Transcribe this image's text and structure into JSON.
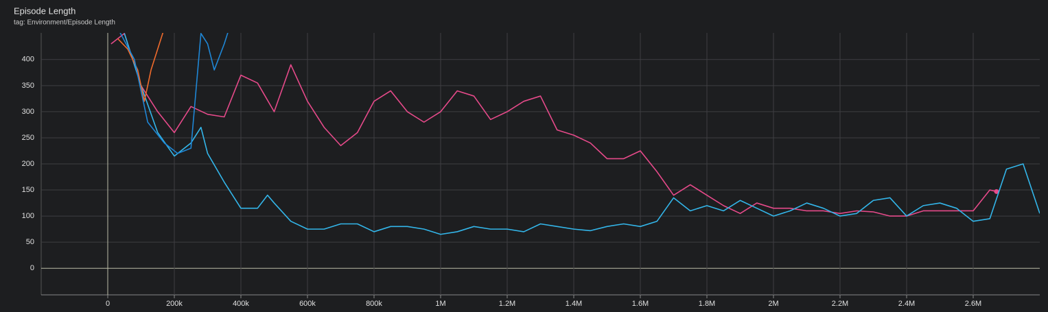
{
  "chart_data": {
    "type": "line",
    "title": "Episode Length",
    "subtitle": "tag: Environment/Episode Length",
    "xlim": [
      -200000,
      2800000
    ],
    "ylim": [
      -51,
      451
    ],
    "xticks": [
      0,
      {
        "value": 200000,
        "label": "200k"
      },
      {
        "value": 400000,
        "label": "400k"
      },
      {
        "value": 600000,
        "label": "600k"
      },
      {
        "value": 800000,
        "label": "800k"
      },
      {
        "value": 1000000,
        "label": "1M"
      },
      {
        "value": 1200000,
        "label": "1.2M"
      },
      {
        "value": 1400000,
        "label": "1.4M"
      },
      {
        "value": 1600000,
        "label": "1.6M"
      },
      {
        "value": 1800000,
        "label": "1.8M"
      },
      {
        "value": 2000000,
        "label": "2M"
      },
      {
        "value": 2200000,
        "label": "2.2M"
      },
      {
        "value": 2400000,
        "label": "2.4M"
      },
      {
        "value": 2600000,
        "label": "2.6M"
      }
    ],
    "yticks": [
      0,
      50,
      100,
      150,
      200,
      250,
      300,
      350,
      400
    ],
    "grid": true,
    "series": [
      {
        "color": "#e64a8a",
        "end_marker": true,
        "x": [
          10000,
          50000,
          100000,
          150000,
          200000,
          250000,
          300000,
          350000,
          400000,
          450000,
          500000,
          550000,
          600000,
          650000,
          700000,
          750000,
          800000,
          850000,
          900000,
          950000,
          1000000,
          1050000,
          1100000,
          1150000,
          1200000,
          1250000,
          1300000,
          1350000,
          1400000,
          1450000,
          1500000,
          1550000,
          1600000,
          1650000,
          1700000,
          1750000,
          1800000,
          1850000,
          1900000,
          1950000,
          2000000,
          2050000,
          2100000,
          2150000,
          2200000,
          2250000,
          2300000,
          2350000,
          2400000,
          2450000,
          2500000,
          2550000,
          2600000,
          2650000,
          2670000
        ],
        "values": [
          430,
          450,
          350,
          300,
          260,
          310,
          295,
          290,
          370,
          355,
          300,
          390,
          320,
          270,
          235,
          260,
          320,
          340,
          300,
          280,
          300,
          340,
          330,
          285,
          300,
          320,
          330,
          265,
          255,
          240,
          210,
          210,
          225,
          185,
          140,
          160,
          140,
          120,
          105,
          125,
          115,
          115,
          110,
          110,
          105,
          110,
          108,
          100,
          100,
          110,
          110,
          110,
          110,
          150,
          147
        ]
      },
      {
        "color": "#33b6ea",
        "x": [
          50000,
          100000,
          150000,
          200000,
          250000,
          280000,
          300000,
          350000,
          400000,
          450000,
          480000,
          500000,
          550000,
          600000,
          650000,
          700000,
          750000,
          800000,
          850000,
          900000,
          950000,
          1000000,
          1050000,
          1100000,
          1150000,
          1200000,
          1250000,
          1300000,
          1350000,
          1400000,
          1450000,
          1500000,
          1550000,
          1600000,
          1650000,
          1700000,
          1750000,
          1800000,
          1850000,
          1900000,
          1950000,
          2000000,
          2050000,
          2100000,
          2150000,
          2200000,
          2250000,
          2300000,
          2350000,
          2400000,
          2450000,
          2500000,
          2550000,
          2600000,
          2650000,
          2700000,
          2750000,
          2800000
        ],
        "values": [
          450,
          350,
          260,
          215,
          240,
          270,
          220,
          165,
          115,
          115,
          140,
          125,
          90,
          75,
          75,
          85,
          85,
          70,
          80,
          80,
          75,
          65,
          70,
          80,
          75,
          75,
          70,
          85,
          80,
          75,
          72,
          80,
          85,
          80,
          90,
          135,
          110,
          120,
          110,
          130,
          115,
          100,
          110,
          125,
          115,
          100,
          105,
          130,
          135,
          100,
          120,
          125,
          115,
          90,
          95,
          190,
          200,
          105
        ]
      },
      {
        "color": "#f06b2c",
        "x": [
          30000,
          60000,
          90000,
          110000,
          130000,
          160000,
          180000
        ],
        "values": [
          440,
          420,
          380,
          320,
          380,
          440,
          480
        ]
      },
      {
        "color": "#1f87d6",
        "x": [
          30000,
          80000,
          120000,
          170000,
          210000,
          250000,
          280000,
          300000,
          320000,
          350000,
          370000
        ],
        "values": [
          460,
          400,
          280,
          240,
          220,
          230,
          450,
          430,
          380,
          430,
          470
        ]
      }
    ]
  }
}
